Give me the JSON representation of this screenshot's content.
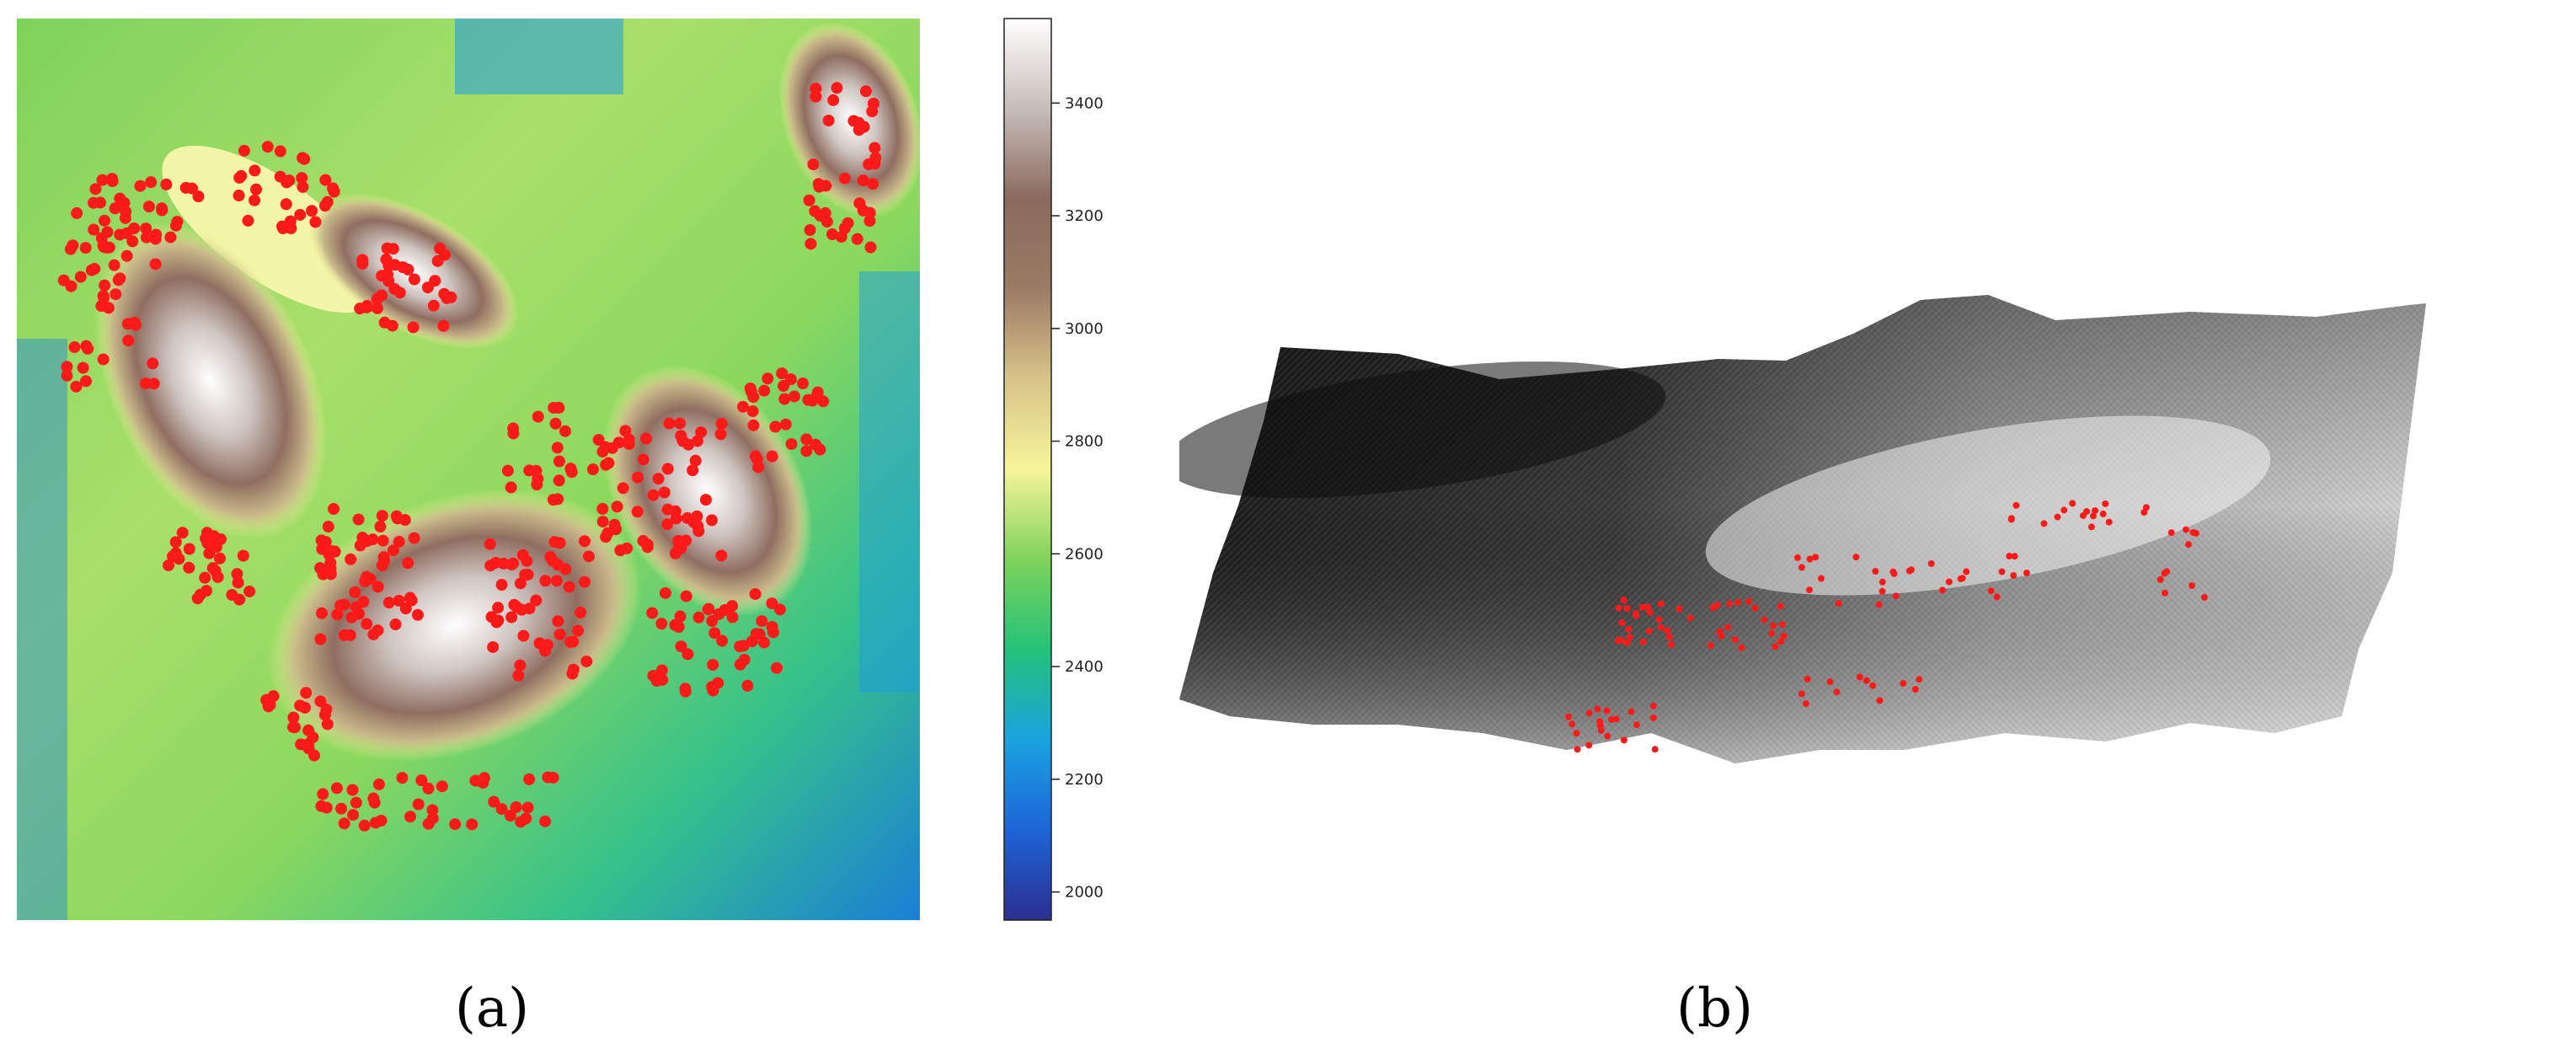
{
  "figure": {
    "panels": [
      {
        "id": "a",
        "caption": "(a)"
      },
      {
        "id": "b",
        "caption": "(b)"
      }
    ]
  },
  "colorbar": {
    "colors": [
      "#2b2f8f",
      "#1e64d8",
      "#1aa3e0",
      "#23c27a",
      "#7fd35a",
      "#f6f59a",
      "#d8c48a",
      "#9b7b64",
      "#8a6a5e",
      "#c7bdb9",
      "#ffffff"
    ],
    "min": 1950,
    "max": 3550,
    "ticks": [
      2000,
      2200,
      2400,
      2600,
      2800,
      3000,
      3200,
      3400
    ]
  },
  "colors": {
    "points": "#ff1a1a",
    "terrain_dark": "#1a1a1a",
    "terrain_light": "#e8e8e8"
  }
}
